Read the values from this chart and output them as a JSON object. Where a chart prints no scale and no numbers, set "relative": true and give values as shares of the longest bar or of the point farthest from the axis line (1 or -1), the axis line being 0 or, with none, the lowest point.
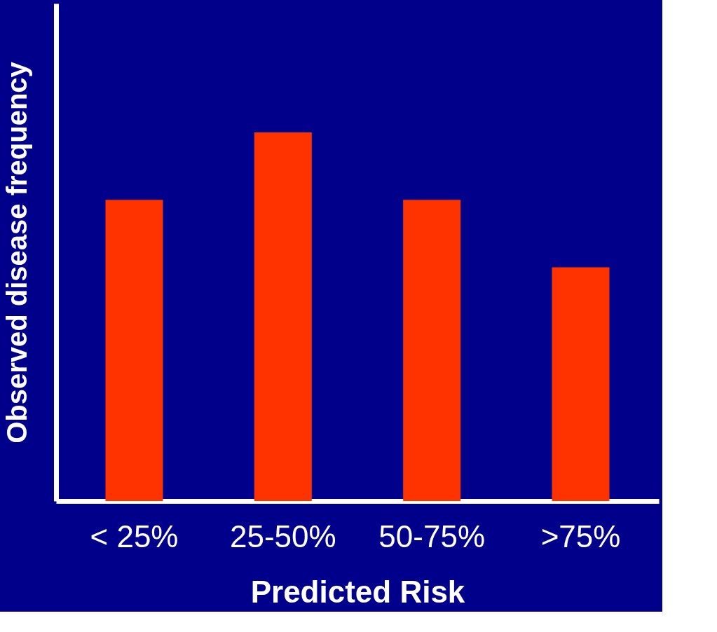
{
  "chart_data": {
    "type": "bar",
    "xlabel": "Predicted Risk",
    "ylabel": "Observed disease frequency",
    "categories": [
      "< 25%",
      "25-50%",
      "50-75%",
      ">75%"
    ],
    "values": [
      0.817,
      1,
      0.817,
      0.634
    ],
    "color": "#ff3300",
    "relative": true,
    "grid": false
  }
}
